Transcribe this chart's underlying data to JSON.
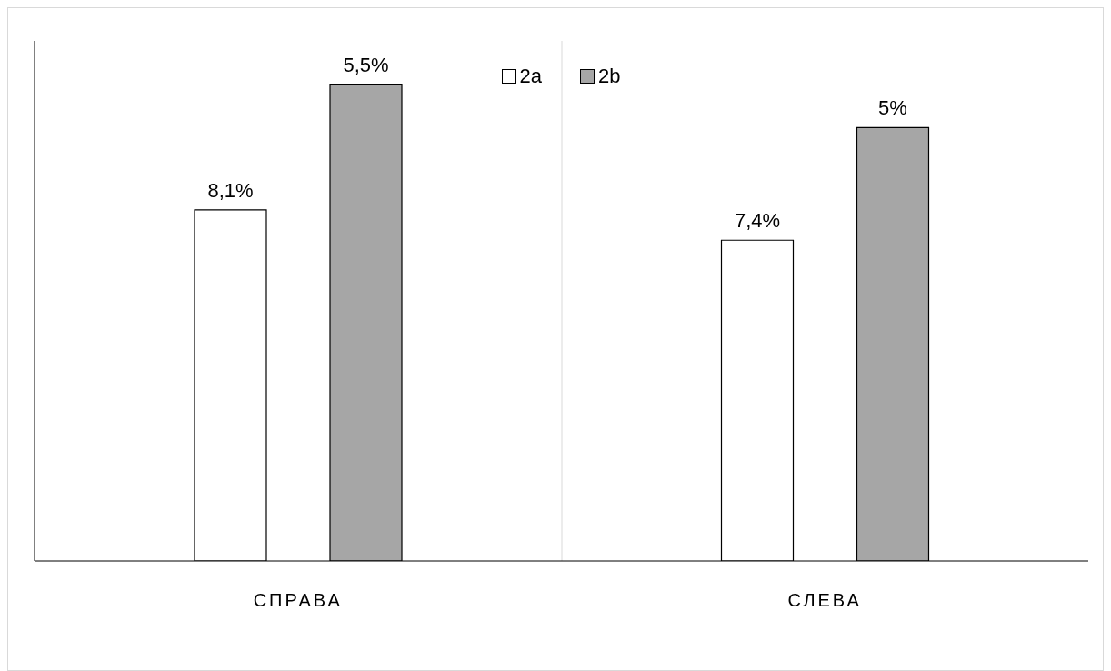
{
  "chart_data": {
    "type": "bar",
    "categories": [
      "СПРАВА",
      "СЛЕВА"
    ],
    "series": [
      {
        "name": "2a",
        "color": "#ffffff",
        "values": [
          8.1,
          7.4
        ],
        "value_labels": [
          "8,1%",
          "7,4%"
        ]
      },
      {
        "name": "2b",
        "color": "#a6a6a6",
        "values": [
          5.5,
          5
        ],
        "value_labels": [
          "5,5%",
          "5%"
        ],
        "axis": "y2"
      }
    ],
    "ylim": [
      0,
      12
    ],
    "y2lim": [
      0,
      6
    ],
    "tick_labels": "x",
    "grid": "x",
    "legend": "top"
  }
}
